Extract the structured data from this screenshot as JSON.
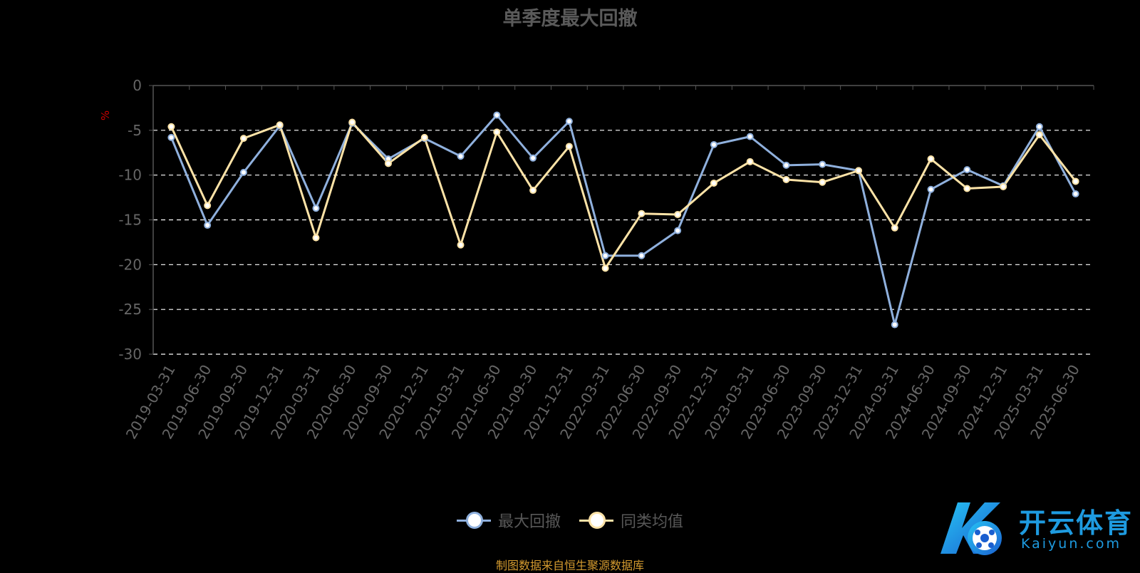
{
  "title": "单季度最大回撤",
  "source": "制图数据来自恒生聚源数据库",
  "logo": {
    "cn": "开云体育",
    "en": "Kaiyun.com"
  },
  "colors": {
    "series1": "#8fb0dd",
    "series2": "#fde3a7",
    "axis": "#555555",
    "tick_text": "#666666",
    "grid": "#ffffff",
    "unit": "#cc0000"
  },
  "chart_data": {
    "type": "line",
    "yunit": "%",
    "ylim": [
      -30,
      0
    ],
    "yticks": [
      0,
      -5,
      -10,
      -15,
      -20,
      -25,
      -30
    ],
    "grid": true,
    "legend_position": "bottom-center",
    "categories": [
      "2019-03-31",
      "2019-06-30",
      "2019-09-30",
      "2019-12-31",
      "2020-03-31",
      "2020-06-30",
      "2020-09-30",
      "2020-12-31",
      "2021-03-31",
      "2021-06-30",
      "2021-09-30",
      "2021-12-31",
      "2022-03-31",
      "2022-06-30",
      "2022-09-30",
      "2022-12-31",
      "2023-03-31",
      "2023-06-30",
      "2023-09-30",
      "2023-12-31",
      "2024-03-31",
      "2024-06-30",
      "2024-09-30",
      "2024-12-31",
      "2025-03-31",
      "2025-06-30"
    ],
    "series": [
      {
        "name": "最大回撤",
        "values": [
          -5.8,
          -15.6,
          -9.7,
          -4.5,
          -13.7,
          -4.2,
          -8.2,
          -5.9,
          -7.9,
          -3.3,
          -8.1,
          -4.0,
          -19.0,
          -19.0,
          -16.2,
          -6.6,
          -5.7,
          -8.9,
          -8.8,
          -9.5,
          -26.7,
          -11.6,
          -9.4,
          -11.2,
          -4.6,
          -12.1
        ]
      },
      {
        "name": "同类均值",
        "values": [
          -4.6,
          -13.4,
          -5.9,
          -4.4,
          -17.0,
          -4.1,
          -8.7,
          -5.8,
          -17.8,
          -5.2,
          -11.7,
          -6.8,
          -20.4,
          -14.3,
          -14.4,
          -10.9,
          -8.5,
          -10.5,
          -10.8,
          -9.5,
          -15.9,
          -8.2,
          -11.5,
          -11.3,
          -5.5,
          -10.7
        ]
      }
    ]
  }
}
